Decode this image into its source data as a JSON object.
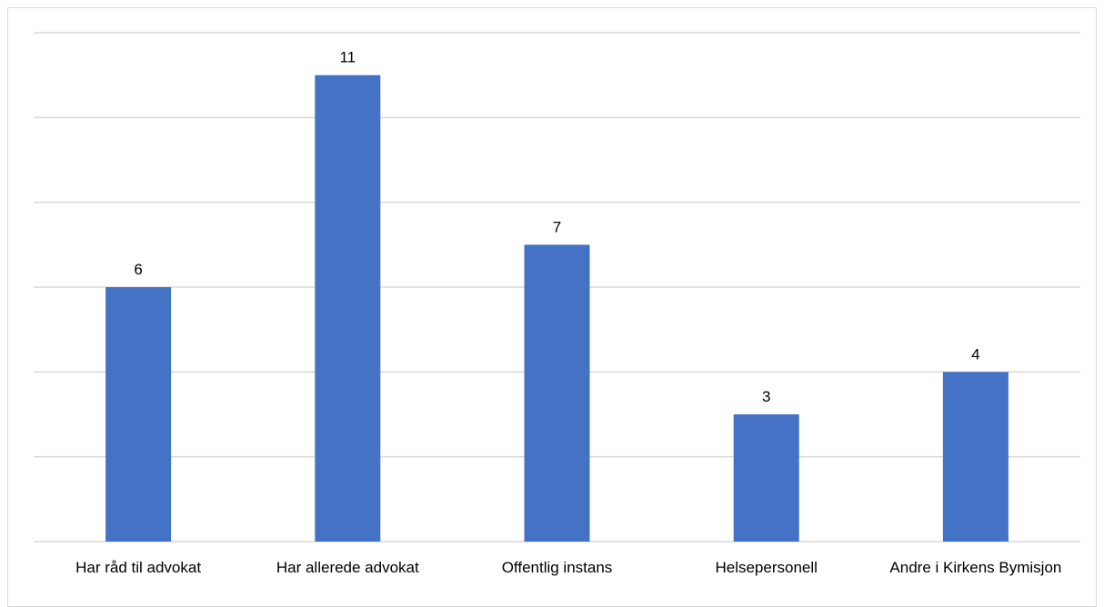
{
  "chart_data": {
    "type": "bar",
    "categories": [
      "Har råd til advokat",
      "Har allerede advokat",
      "Offentlig instans",
      "Helsepersonell",
      "Andre i Kirkens Bymisjon"
    ],
    "values": [
      6,
      11,
      7,
      3,
      4
    ],
    "data_labels": [
      "6",
      "11",
      "7",
      "3",
      "4"
    ],
    "title": "",
    "xlabel": "",
    "ylabel": "",
    "ylim": [
      0,
      12
    ],
    "gridline_step": 2,
    "grid": true,
    "y_tick_labels_visible": false,
    "legend": "none",
    "colors": {
      "bar": "#4472c4",
      "grid": "#d9d9d9",
      "text": "#000000"
    }
  }
}
